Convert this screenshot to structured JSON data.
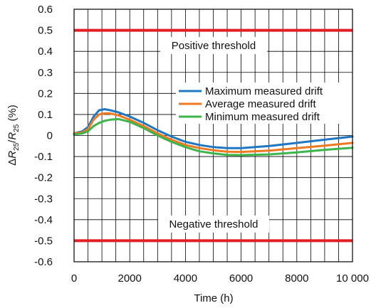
{
  "chart_data": {
    "type": "line",
    "xlabel": "Time (h)",
    "ylabel": {
      "delta": "Δ",
      "r1": "R",
      "sub1": "25",
      "slash": "/",
      "r2": "R",
      "sub2": "25",
      "unit": " (%)"
    },
    "xlim": [
      0,
      10000
    ],
    "ylim": [
      -0.6,
      0.6
    ],
    "x_ticks": [
      0,
      2000,
      4000,
      6000,
      8000,
      10000
    ],
    "x_tick_labels": [
      "0",
      "2000",
      "4000",
      "6000",
      "8000",
      "10 000"
    ],
    "y_ticks": [
      0.6,
      0.5,
      0.4,
      0.3,
      0.2,
      0.1,
      0,
      -0.1,
      -0.2,
      -0.3,
      -0.4,
      -0.5,
      -0.6
    ],
    "y_tick_labels": [
      "0.6",
      "0.5",
      "0.4",
      "0.3",
      "0.2",
      "0.1",
      "0",
      "-0.1",
      "-0.2",
      "-0.3",
      "-0.4",
      "-0.5",
      "-0.6"
    ],
    "grid": true,
    "thresholds": [
      {
        "name": "Positive threshold",
        "value": 0.5,
        "color": "#e31e24"
      },
      {
        "name": "Negative threshold",
        "value": -0.5,
        "color": "#e31e24"
      }
    ],
    "x": [
      0,
      300,
      500,
      700,
      900,
      1100,
      1300,
      1600,
      2000,
      2500,
      3000,
      3500,
      4000,
      4500,
      5000,
      5500,
      6000,
      7000,
      8000,
      9000,
      10000
    ],
    "series": [
      {
        "name": "Maximum measured drift",
        "color": "#1f77c4",
        "values": [
          0.01,
          0.02,
          0.04,
          0.09,
          0.12,
          0.125,
          0.12,
          0.11,
          0.09,
          0.06,
          0.025,
          -0.005,
          -0.03,
          -0.045,
          -0.055,
          -0.06,
          -0.06,
          -0.05,
          -0.035,
          -0.02,
          -0.005
        ]
      },
      {
        "name": "Average measured drift",
        "color": "#f07820",
        "values": [
          0.01,
          0.015,
          0.03,
          0.075,
          0.1,
          0.105,
          0.105,
          0.095,
          0.075,
          0.045,
          0.01,
          -0.02,
          -0.045,
          -0.06,
          -0.07,
          -0.077,
          -0.078,
          -0.072,
          -0.06,
          -0.048,
          -0.035
        ]
      },
      {
        "name": "Minimum measured drift",
        "color": "#3cb54a",
        "values": [
          0.005,
          0.01,
          0.02,
          0.045,
          0.06,
          0.07,
          0.075,
          0.078,
          0.065,
          0.035,
          0.0,
          -0.03,
          -0.055,
          -0.075,
          -0.085,
          -0.092,
          -0.093,
          -0.09,
          -0.08,
          -0.068,
          -0.058
        ]
      }
    ],
    "legend_position": "top-right, inside plot"
  }
}
